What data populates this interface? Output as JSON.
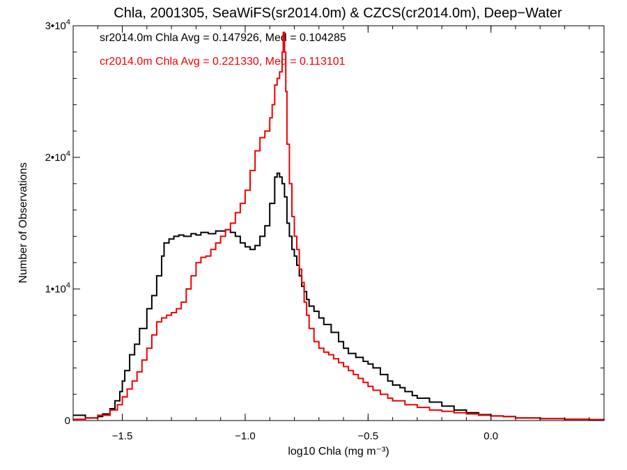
{
  "chart_data": {
    "type": "line",
    "title": "Chla, 2001305, SeaWiFS(sr2014.0m) & CZCS(cr2014.0m), Deep−Water",
    "xlabel": "log10 Chla (mg m⁻³)",
    "ylabel": "Number of Observations",
    "xlim": [
      -1.7,
      0.46
    ],
    "ylim": [
      0,
      30000
    ],
    "x_ticks": [
      {
        "value": -1.5,
        "label": "−1.5"
      },
      {
        "value": -1.0,
        "label": "−1.0"
      },
      {
        "value": -0.5,
        "label": "−0.5"
      },
      {
        "value": 0.0,
        "label": "0.0"
      }
    ],
    "y_ticks": [
      {
        "value": 0,
        "label": "0"
      },
      {
        "value": 10000,
        "label": "1•10",
        "exp": "4"
      },
      {
        "value": 20000,
        "label": "2•10",
        "exp": "4"
      },
      {
        "value": 30000,
        "label": "3•10",
        "exp": "4"
      }
    ],
    "grid": false,
    "step": true,
    "annotations": [
      {
        "text": "sr2014.0m Chla Avg = 0.147926, Med = 0.104285",
        "color": "#000000"
      },
      {
        "text": "cr2014.0m Chla Avg = 0.221330, Med = 0.113101",
        "color": "#ee0000"
      }
    ],
    "series": [
      {
        "color": "#000000",
        "x": [
          -1.7,
          -1.65,
          -1.6,
          -1.58,
          -1.55,
          -1.53,
          -1.51,
          -1.5,
          -1.49,
          -1.47,
          -1.45,
          -1.43,
          -1.4,
          -1.38,
          -1.36,
          -1.34,
          -1.33,
          -1.31,
          -1.29,
          -1.27,
          -1.25,
          -1.22,
          -1.2,
          -1.18,
          -1.15,
          -1.12,
          -1.1,
          -1.08,
          -1.06,
          -1.04,
          -1.02,
          -1.0,
          -0.98,
          -0.96,
          -0.94,
          -0.92,
          -0.9,
          -0.88,
          -0.87,
          -0.86,
          -0.85,
          -0.84,
          -0.83,
          -0.82,
          -0.81,
          -0.8,
          -0.79,
          -0.78,
          -0.77,
          -0.76,
          -0.75,
          -0.74,
          -0.72,
          -0.7,
          -0.68,
          -0.65,
          -0.62,
          -0.6,
          -0.58,
          -0.55,
          -0.52,
          -0.5,
          -0.48,
          -0.45,
          -0.42,
          -0.4,
          -0.37,
          -0.35,
          -0.32,
          -0.3,
          -0.25,
          -0.2,
          -0.15,
          -0.1,
          -0.05,
          0.0,
          0.05,
          0.1,
          0.2,
          0.3,
          0.4,
          0.46
        ],
        "values": [
          400,
          200,
          300,
          500,
          900,
          1500,
          2200,
          3000,
          3800,
          5000,
          5800,
          7000,
          8500,
          9500,
          11000,
          12500,
          13500,
          13800,
          14000,
          14100,
          14000,
          14200,
          14100,
          14300,
          14200,
          14400,
          14400,
          14500,
          14300,
          14000,
          13500,
          13200,
          13000,
          13300,
          14000,
          14800,
          16500,
          18500,
          18800,
          18500,
          18000,
          17000,
          15000,
          14000,
          13000,
          12500,
          11800,
          11000,
          10200,
          9800,
          9200,
          8700,
          8300,
          7800,
          7300,
          6700,
          6000,
          5500,
          5100,
          4800,
          4500,
          4300,
          4000,
          3500,
          3000,
          2700,
          2500,
          2200,
          1900,
          1700,
          1400,
          1100,
          800,
          600,
          450,
          350,
          300,
          200,
          150,
          100,
          80,
          60
        ]
      },
      {
        "color": "#ee0000",
        "x": [
          -1.7,
          -1.65,
          -1.6,
          -1.55,
          -1.52,
          -1.5,
          -1.48,
          -1.46,
          -1.44,
          -1.42,
          -1.4,
          -1.38,
          -1.36,
          -1.34,
          -1.32,
          -1.3,
          -1.28,
          -1.26,
          -1.24,
          -1.22,
          -1.2,
          -1.18,
          -1.16,
          -1.14,
          -1.12,
          -1.1,
          -1.08,
          -1.06,
          -1.04,
          -1.02,
          -1.0,
          -0.98,
          -0.96,
          -0.94,
          -0.92,
          -0.9,
          -0.89,
          -0.88,
          -0.87,
          -0.86,
          -0.85,
          -0.845,
          -0.84,
          -0.835,
          -0.83,
          -0.82,
          -0.81,
          -0.8,
          -0.79,
          -0.78,
          -0.77,
          -0.76,
          -0.75,
          -0.74,
          -0.72,
          -0.7,
          -0.68,
          -0.66,
          -0.64,
          -0.62,
          -0.6,
          -0.58,
          -0.56,
          -0.54,
          -0.52,
          -0.5,
          -0.48,
          -0.45,
          -0.42,
          -0.4,
          -0.35,
          -0.3,
          -0.25,
          -0.2,
          -0.15,
          -0.1,
          -0.05,
          0.0,
          0.05,
          0.1,
          0.2,
          0.3,
          0.4,
          0.46
        ],
        "values": [
          100,
          200,
          400,
          800,
          1200,
          1800,
          2400,
          3000,
          3700,
          4600,
          5500,
          6500,
          7500,
          7800,
          8000,
          8200,
          8500,
          9000,
          10000,
          11000,
          12000,
          12400,
          12500,
          13000,
          13500,
          14000,
          14500,
          15000,
          15800,
          16500,
          17500,
          19000,
          20500,
          21500,
          22000,
          23000,
          24000,
          25500,
          26000,
          26500,
          28000,
          29500,
          28000,
          25000,
          21000,
          18000,
          15500,
          14000,
          13000,
          11500,
          10500,
          9000,
          8000,
          7000,
          6000,
          5500,
          5200,
          5000,
          4700,
          4400,
          4100,
          3800,
          3500,
          3200,
          2900,
          2600,
          2300,
          2000,
          1700,
          1500,
          1200,
          1000,
          800,
          700,
          600,
          500,
          400,
          350,
          300,
          200,
          150,
          100,
          80,
          60
        ]
      }
    ]
  }
}
